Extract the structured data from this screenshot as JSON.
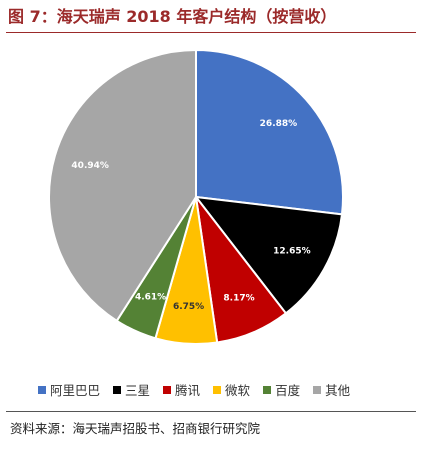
{
  "figure": {
    "title": "图 7：海天瑞声 2018 年客户结构（按营收）",
    "source": "资料来源：海天瑞声招股书、招商银行研究院"
  },
  "chart_data": {
    "type": "pie",
    "start_angle_deg": 0,
    "direction": "clockwise",
    "slices": [
      {
        "label": "阿里巴巴",
        "value": 26.88,
        "display": "26.88%",
        "color": "#4472c4",
        "text_color": "#ffffff"
      },
      {
        "label": "三星",
        "value": 12.65,
        "display": "12.65%",
        "color": "#000000",
        "text_color": "#ffffff"
      },
      {
        "label": "腾讯",
        "value": 8.17,
        "display": "8.17%",
        "color": "#c00000",
        "text_color": "#ffffff"
      },
      {
        "label": "微软",
        "value": 6.75,
        "display": "6.75%",
        "color": "#ffc000",
        "text_color": "#333333"
      },
      {
        "label": "百度",
        "value": 4.61,
        "display": "4.61%",
        "color": "#548235",
        "text_color": "#ffffff"
      },
      {
        "label": "其他",
        "value": 40.94,
        "display": "40.94%",
        "color": "#a6a6a6",
        "text_color": "#ffffff"
      }
    ],
    "legend_position": "bottom"
  }
}
